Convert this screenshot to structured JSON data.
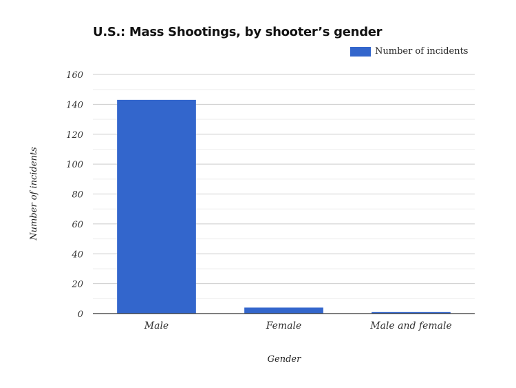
{
  "chart_data": {
    "type": "bar",
    "title": "U.S.: Mass Shootings, by shooter’s gender",
    "xlabel": "Gender",
    "ylabel": "Number of incidents",
    "categories": [
      "Male",
      "Female",
      "Male and female"
    ],
    "series": [
      {
        "name": "Number of incidents",
        "values": [
          143,
          4,
          1
        ],
        "color": "#3366cc"
      }
    ],
    "ylim": [
      0,
      160
    ],
    "yticks": [
      0,
      20,
      40,
      60,
      80,
      100,
      120,
      140,
      160
    ],
    "grid": true,
    "legend": "top-right"
  }
}
